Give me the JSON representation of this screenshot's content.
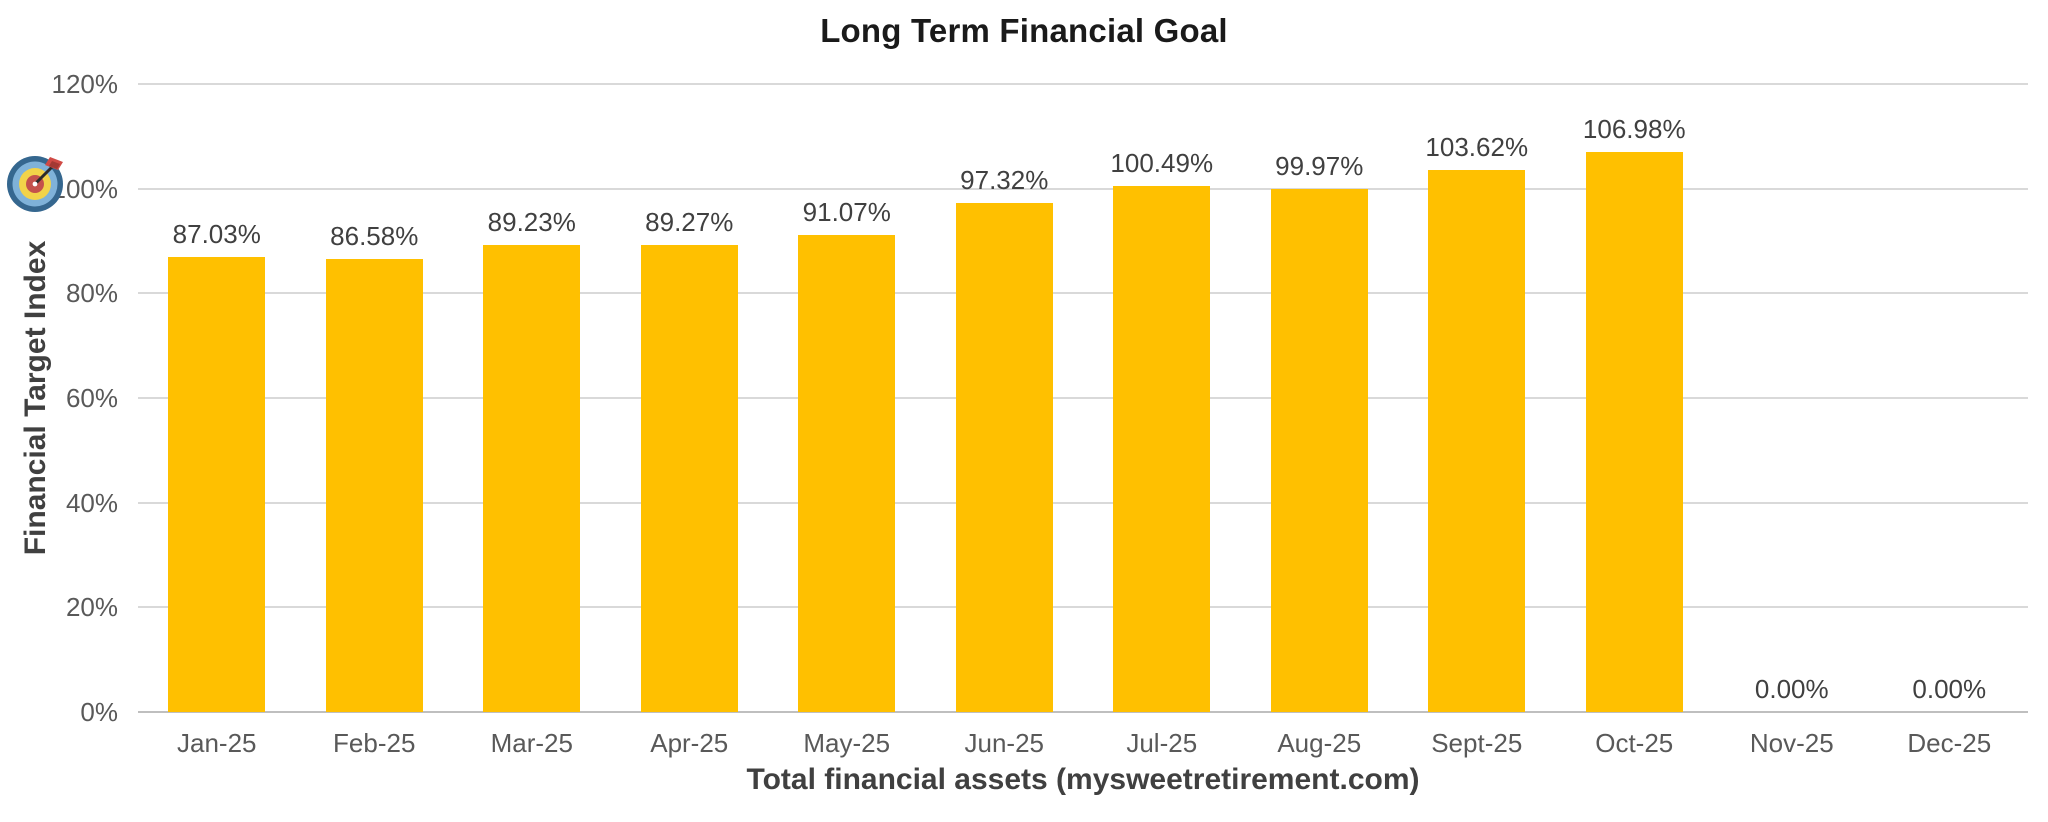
{
  "chart_data": {
    "type": "bar",
    "title": "Long Term Financial Goal",
    "xlabel": "Total financial assets (mysweetretirement.com)",
    "ylabel": "Financial Target Index",
    "categories": [
      "Jan-25",
      "Feb-25",
      "Mar-25",
      "Apr-25",
      "May-25",
      "Jun-25",
      "Jul-25",
      "Aug-25",
      "Sept-25",
      "Oct-25",
      "Nov-25",
      "Dec-25"
    ],
    "values": [
      87.03,
      86.58,
      89.23,
      89.27,
      91.07,
      97.32,
      100.49,
      99.97,
      103.62,
      106.98,
      0.0,
      0.0
    ],
    "value_labels": [
      "87.03%",
      "86.58%",
      "89.23%",
      "89.27%",
      "91.07%",
      "97.32%",
      "100.49%",
      "99.97%",
      "103.62%",
      "106.98%",
      "0.00%",
      "0.00%"
    ],
    "ylim": [
      0,
      120
    ],
    "yticks": [
      0,
      20,
      40,
      60,
      80,
      100,
      120
    ],
    "ytick_labels": [
      "0%",
      "20%",
      "40%",
      "60%",
      "80%",
      "100%",
      "120%"
    ],
    "grid": "horizontal",
    "legend_position": "none",
    "bar_color": "#FFC000",
    "gridline_color": "#d9d9d9",
    "axis_line_color": "#bfbfbf",
    "tick_label_color": "#595959",
    "value_label_color": "#404040",
    "title_color": "#1a1a1a",
    "axis_title_color": "#404040",
    "icons": {
      "target_icon": "dartboard-with-dart",
      "target_icon_position": "left-of-100%-tick"
    }
  }
}
